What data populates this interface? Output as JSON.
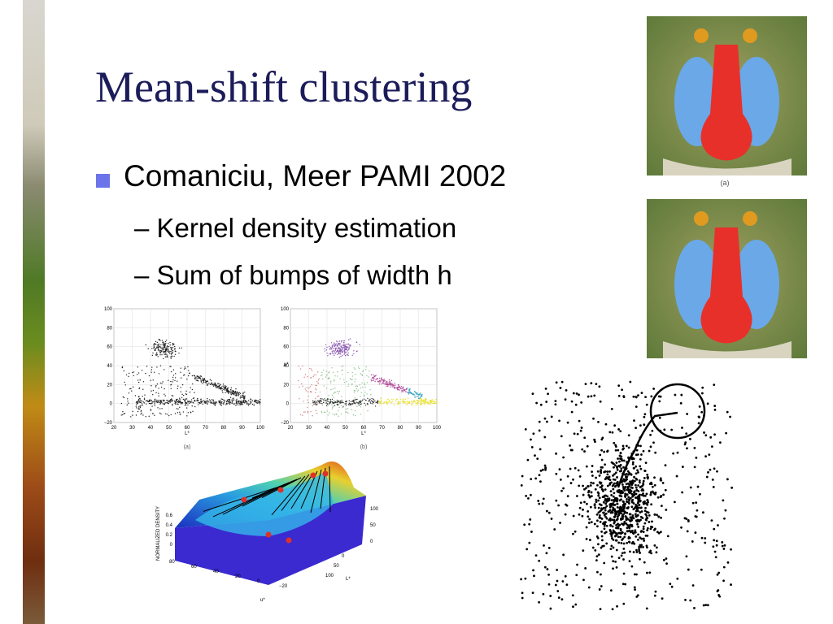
{
  "slide": {
    "title": "Mean-shift clustering",
    "bullets": [
      {
        "text": "Comaniciu, Meer PAMI 2002",
        "sub": [
          "Kernel density estimation",
          "Sum of bumps of width h"
        ]
      }
    ],
    "figures": {
      "baboon_caption": "(a)",
      "scatter_a": {
        "caption": "(a)",
        "xlabel": "L*",
        "yticks": [
          "100",
          "80",
          "60",
          "40",
          "20",
          "0",
          "−20"
        ],
        "xticks": [
          "20",
          "30",
          "40",
          "50",
          "60",
          "70",
          "80",
          "90",
          "100"
        ]
      },
      "scatter_b": {
        "caption": "(b)",
        "xlabel": "L*",
        "ylabel": "u*",
        "yticks": [
          "100",
          "80",
          "60",
          "40",
          "20",
          "0",
          "−20"
        ],
        "xticks": [
          "20",
          "30",
          "40",
          "50",
          "60",
          "70",
          "80",
          "90",
          "100"
        ]
      },
      "density": {
        "zlabel": "NORMALIZED DENSITY",
        "zticks": [
          "0.6",
          "0.4",
          "0.2",
          "0"
        ],
        "xlabel": "u*",
        "ylabel": "L*",
        "xticks": [
          "80",
          "60",
          "40",
          "20",
          "0",
          "−20"
        ],
        "yticks": [
          "100",
          "50",
          "0"
        ],
        "rticks": [
          "100",
          "50",
          "0"
        ]
      }
    }
  }
}
